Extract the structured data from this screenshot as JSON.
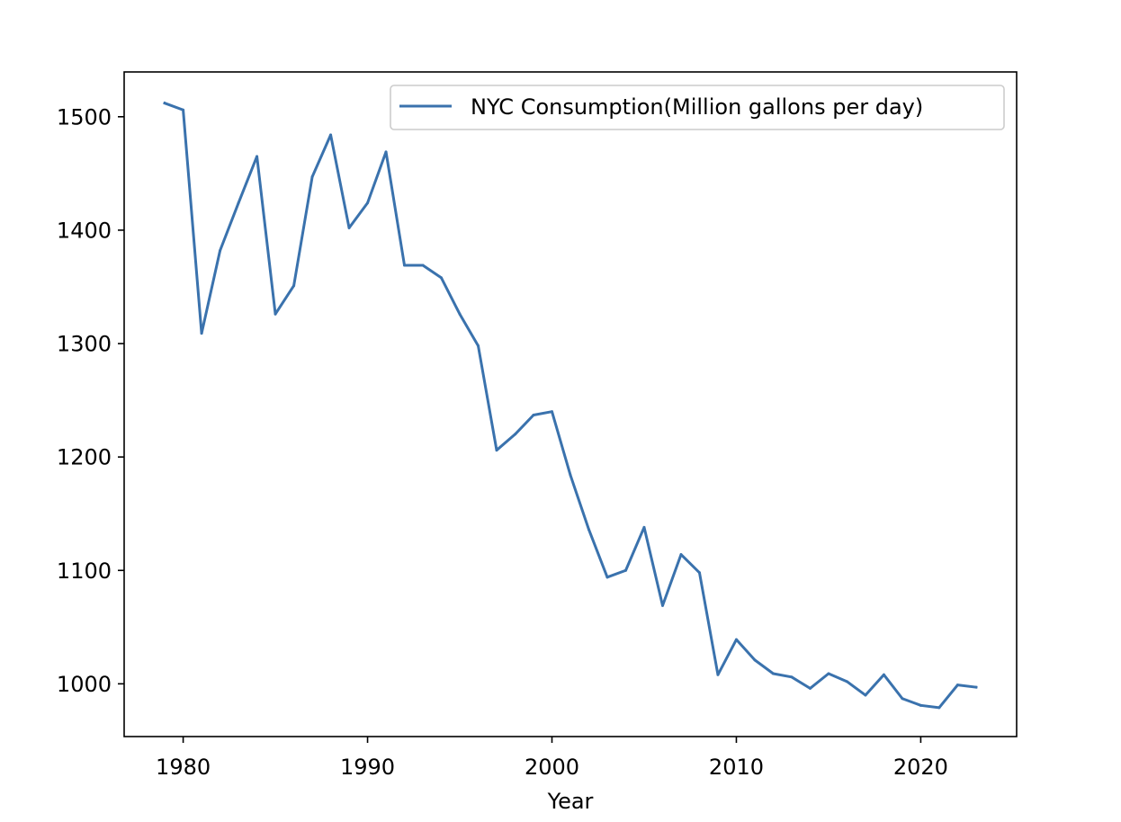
{
  "chart_data": {
    "type": "line",
    "title": "",
    "xlabel": "Year",
    "ylabel": "",
    "xlim": [
      1976.8,
      2025.2
    ],
    "ylim": [
      953.5,
      1539.5
    ],
    "xticks": [
      1980,
      1990,
      2000,
      2010,
      2020
    ],
    "yticks": [
      1000,
      1100,
      1200,
      1300,
      1400,
      1500
    ],
    "grid": false,
    "legend_position": "top-right",
    "series": [
      {
        "name": "NYC Consumption(Million gallons per day)",
        "color": "#3a72ad",
        "x": [
          1979,
          1980,
          1981,
          1982,
          1983,
          1984,
          1985,
          1986,
          1987,
          1988,
          1989,
          1990,
          1991,
          1992,
          1993,
          1994,
          1995,
          1996,
          1997,
          1998,
          1999,
          2000,
          2001,
          2002,
          2003,
          2004,
          2005,
          2006,
          2007,
          2008,
          2009,
          2010,
          2011,
          2012,
          2013,
          2014,
          2015,
          2016,
          2017,
          2018,
          2019,
          2020,
          2021,
          2022,
          2023
        ],
        "values": [
          1512,
          1506,
          1309,
          1382,
          1424,
          1465,
          1326,
          1351,
          1447,
          1484,
          1402,
          1424,
          1469,
          1369,
          1369,
          1358,
          1326,
          1298,
          1206,
          1220,
          1237,
          1240,
          1184,
          1136,
          1094,
          1100,
          1138,
          1069,
          1114,
          1098,
          1008,
          1039,
          1021,
          1009,
          1006,
          996,
          1009,
          1002,
          990,
          1008,
          987,
          981,
          979,
          999,
          997
        ]
      }
    ]
  }
}
